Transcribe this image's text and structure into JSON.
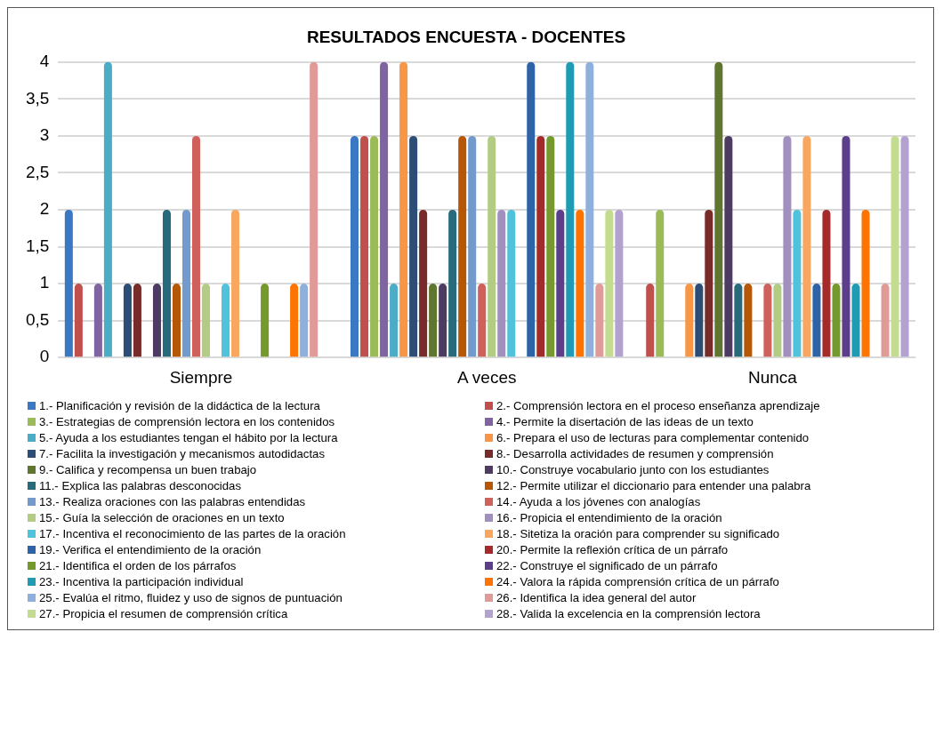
{
  "chart_data": {
    "type": "bar",
    "title": "RESULTADOS ENCUESTA - DOCENTES",
    "categories": [
      "Siempre",
      "A veces",
      "Nunca"
    ],
    "ylim": [
      0,
      4
    ],
    "yticks": [
      0,
      {
        "value": 0.5,
        "label": "0,5"
      },
      1,
      {
        "value": 1.5,
        "label": "1,5"
      },
      2,
      {
        "value": 2.5,
        "label": "2,5"
      },
      3,
      {
        "value": 3.5,
        "label": "3,5"
      },
      4
    ],
    "grid": "y",
    "legend": "bottom",
    "series": [
      {
        "name": "1.- Planificación y revisión de la didáctica de la lectura",
        "color": "#3a78c4",
        "values": [
          2,
          3,
          0
        ]
      },
      {
        "name": "2.- Comprensión lectora en el proceso enseñanza aprendizaje",
        "color": "#c0504d",
        "values": [
          1,
          3,
          1
        ]
      },
      {
        "name": "3.- Estrategias de comprensión lectora en los contenidos",
        "color": "#9bbb59",
        "values": [
          0,
          3,
          2
        ]
      },
      {
        "name": "4.- Permite la disertación de las ideas de un texto",
        "color": "#8064a2",
        "values": [
          1,
          4,
          0
        ]
      },
      {
        "name": "5.- Ayuda a los estudiantes tengan el hábito por la lectura",
        "color": "#4bacc6",
        "values": [
          4,
          1,
          0
        ]
      },
      {
        "name": "6.- Prepara el uso de lecturas para complementar contenido",
        "color": "#f79646",
        "values": [
          0,
          4,
          1
        ]
      },
      {
        "name": "7.- Facilita la investigación y mecanismos autodidactas",
        "color": "#2c4d75",
        "values": [
          1,
          3,
          1
        ]
      },
      {
        "name": "8.- Desarrolla actividades de resumen y comprensión",
        "color": "#772c2a",
        "values": [
          1,
          2,
          2
        ]
      },
      {
        "name": "9.- Califica y recompensa un buen trabajo",
        "color": "#5f7530",
        "values": [
          0,
          1,
          4
        ]
      },
      {
        "name": "10.- Construye vocabulario junto con los estudiantes",
        "color": "#4d3b62",
        "values": [
          1,
          1,
          3
        ]
      },
      {
        "name": "11.- Explica las palabras desconocidas",
        "color": "#276a7c",
        "values": [
          2,
          2,
          1
        ]
      },
      {
        "name": "12.- Permite utilizar el diccionario para entender una palabra",
        "color": "#b65708",
        "values": [
          1,
          3,
          1
        ]
      },
      {
        "name": "13.- Realiza oraciones con las palabras entendidas",
        "color": "#729aca",
        "values": [
          2,
          3,
          0
        ]
      },
      {
        "name": "14.- Ayuda a los jóvenes con analogías",
        "color": "#d0605c",
        "values": [
          3,
          1,
          1
        ]
      },
      {
        "name": "15.- Guía la selección de oraciones en un texto",
        "color": "#b3cc83",
        "values": [
          1,
          3,
          1
        ]
      },
      {
        "name": "16.- Propicia el entendimiento de la oración",
        "color": "#a18fbf",
        "values": [
          0,
          2,
          3
        ]
      },
      {
        "name": "17.- Incentiva el reconocimiento de las partes de la oración",
        "color": "#4fc3dc",
        "values": [
          1,
          2,
          2
        ]
      },
      {
        "name": "18.- Sitetiza la oración para comprender su significado",
        "color": "#f9a65f",
        "values": [
          2,
          0,
          3
        ]
      },
      {
        "name": "19.- Verifica el entendimiento de la oración",
        "color": "#2e63a8",
        "values": [
          0,
          4,
          1
        ]
      },
      {
        "name": "20.- Permite la reflexión crítica de un párrafo",
        "color": "#a52a2a",
        "values": [
          0,
          3,
          2
        ]
      },
      {
        "name": "21.- Identifica el orden de los párrafos",
        "color": "#76992e",
        "values": [
          1,
          3,
          1
        ]
      },
      {
        "name": "22.- Construye el significado de un párrafo",
        "color": "#5c3f8a",
        "values": [
          0,
          2,
          3
        ]
      },
      {
        "name": "23.- Incentiva la participación individual",
        "color": "#1f9bb3",
        "values": [
          0,
          4,
          1
        ]
      },
      {
        "name": "24.- Valora la rápida comprensión crítica de un párrafo",
        "color": "#ff7400",
        "values": [
          1,
          2,
          2
        ]
      },
      {
        "name": "25.- Evalúa el ritmo, fluidez y uso de signos de puntuación",
        "color": "#8fb0dd",
        "values": [
          1,
          4,
          0
        ]
      },
      {
        "name": "26.- Identifica la idea general del autor",
        "color": "#e09a98",
        "values": [
          4,
          1,
          1
        ]
      },
      {
        "name": "27.- Propicia el resumen de comprensión crítica",
        "color": "#c4dc90",
        "values": [
          0,
          2,
          3
        ]
      },
      {
        "name": "28.- Valida la excelencia en la comprensión lectora",
        "color": "#b3a2cf",
        "values": [
          0,
          2,
          3
        ]
      }
    ]
  }
}
